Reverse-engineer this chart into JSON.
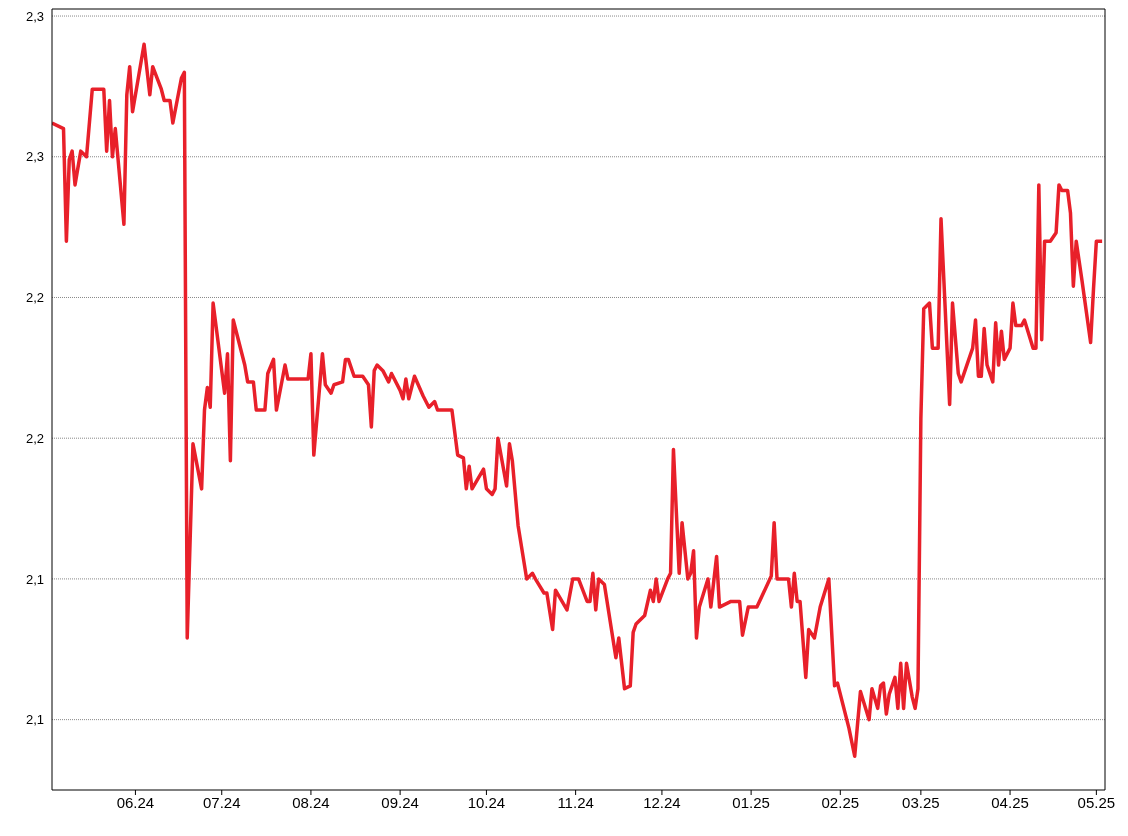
{
  "chart_data": {
    "type": "line",
    "grid": "y",
    "legend": false,
    "marker": "none",
    "line_style": "solid",
    "xlim": [
      "2024-05-03",
      "2025-05-04"
    ],
    "xticks": [
      {
        "value": "2024-06-01",
        "label": "06.24"
      },
      {
        "value": "2024-07-01",
        "label": "07.24"
      },
      {
        "value": "2024-08-01",
        "label": "08.24"
      },
      {
        "value": "2024-09-01",
        "label": "09.24"
      },
      {
        "value": "2024-10-01",
        "label": "10.24"
      },
      {
        "value": "2024-11-01",
        "label": "11.24"
      },
      {
        "value": "2024-12-01",
        "label": "12.24"
      },
      {
        "value": "2025-01-01",
        "label": "01.25"
      },
      {
        "value": "2025-02-01",
        "label": "02.25"
      },
      {
        "value": "2025-03-01",
        "label": "03.25"
      },
      {
        "value": "2025-04-01",
        "label": "04.25"
      },
      {
        "value": "2025-05-01",
        "label": "05.25"
      }
    ],
    "ylim": [
      2.075,
      2.3525
    ],
    "yticks": [
      {
        "value": 2.1,
        "label": "2,1"
      },
      {
        "value": 2.15,
        "label": "2,1"
      },
      {
        "value": 2.2,
        "label": "2,2"
      },
      {
        "value": 2.25,
        "label": "2,2"
      },
      {
        "value": 2.3,
        "label": "2,3"
      },
      {
        "value": 2.35,
        "label": "2,3"
      }
    ],
    "x": [
      "2024-05-03",
      "2024-05-07",
      "2024-05-08",
      "2024-05-09",
      "2024-05-10",
      "2024-05-11",
      "2024-05-13",
      "2024-05-15",
      "2024-05-17",
      "2024-05-21",
      "2024-05-22",
      "2024-05-23",
      "2024-05-24",
      "2024-05-25",
      "2024-05-28",
      "2024-05-29",
      "2024-05-30",
      "2024-05-31",
      "2024-06-04",
      "2024-06-06",
      "2024-06-07",
      "2024-06-10",
      "2024-06-11",
      "2024-06-13",
      "2024-06-14",
      "2024-06-17",
      "2024-06-18",
      "2024-06-19",
      "2024-06-21",
      "2024-06-24",
      "2024-06-25",
      "2024-06-26",
      "2024-06-27",
      "2024-06-28",
      "2024-07-02",
      "2024-07-03",
      "2024-07-04",
      "2024-07-05",
      "2024-07-09",
      "2024-07-10",
      "2024-07-12",
      "2024-07-13",
      "2024-07-16",
      "2024-07-17",
      "2024-07-19",
      "2024-07-20",
      "2024-07-23",
      "2024-07-24",
      "2024-07-31",
      "2024-08-01",
      "2024-08-02",
      "2024-08-05",
      "2024-08-06",
      "2024-08-08",
      "2024-08-09",
      "2024-08-12",
      "2024-08-13",
      "2024-08-14",
      "2024-08-16",
      "2024-08-19",
      "2024-08-21",
      "2024-08-22",
      "2024-08-23",
      "2024-08-24",
      "2024-08-26",
      "2024-08-28",
      "2024-08-29",
      "2024-09-01",
      "2024-09-02",
      "2024-09-03",
      "2024-09-04",
      "2024-09-06",
      "2024-09-09",
      "2024-09-11",
      "2024-09-13",
      "2024-09-14",
      "2024-09-19",
      "2024-09-21",
      "2024-09-23",
      "2024-09-24",
      "2024-09-25",
      "2024-09-26",
      "2024-09-30",
      "2024-10-01",
      "2024-10-03",
      "2024-10-04",
      "2024-10-05",
      "2024-10-08",
      "2024-10-09",
      "2024-10-10",
      "2024-10-12",
      "2024-10-15",
      "2024-10-17",
      "2024-10-18",
      "2024-10-21",
      "2024-10-22",
      "2024-10-24",
      "2024-10-25",
      "2024-10-29",
      "2024-10-31",
      "2024-11-02",
      "2024-11-05",
      "2024-11-06",
      "2024-11-07",
      "2024-11-08",
      "2024-11-09",
      "2024-11-11",
      "2024-11-15",
      "2024-11-16",
      "2024-11-18",
      "2024-11-20",
      "2024-11-21",
      "2024-11-22",
      "2024-11-25",
      "2024-11-27",
      "2024-11-28",
      "2024-11-29",
      "2024-11-30",
      "2024-12-03",
      "2024-12-04",
      "2024-12-05",
      "2024-12-07",
      "2024-12-08",
      "2024-12-10",
      "2024-12-11",
      "2024-12-12",
      "2024-12-13",
      "2024-12-14",
      "2024-12-17",
      "2024-12-18",
      "2024-12-20",
      "2024-12-21",
      "2024-12-25",
      "2024-12-28",
      "2024-12-29",
      "2024-12-31",
      "2025-01-03",
      "2025-01-08",
      "2025-01-09",
      "2025-01-10",
      "2025-01-14",
      "2025-01-15",
      "2025-01-16",
      "2025-01-17",
      "2025-01-18",
      "2025-01-20",
      "2025-01-21",
      "2025-01-23",
      "2025-01-25",
      "2025-01-28",
      "2025-01-30",
      "2025-01-31",
      "2025-02-04",
      "2025-02-06",
      "2025-02-08",
      "2025-02-11",
      "2025-02-12",
      "2025-02-14",
      "2025-02-15",
      "2025-02-16",
      "2025-02-17",
      "2025-02-18",
      "2025-02-20",
      "2025-02-21",
      "2025-02-22",
      "2025-02-23",
      "2025-02-24",
      "2025-02-26",
      "2025-02-27",
      "2025-02-28",
      "2025-03-01",
      "2025-03-02",
      "2025-03-04",
      "2025-03-05",
      "2025-03-07",
      "2025-03-08",
      "2025-03-11",
      "2025-03-12",
      "2025-03-14",
      "2025-03-15",
      "2025-03-19",
      "2025-03-20",
      "2025-03-21",
      "2025-03-22",
      "2025-03-23",
      "2025-03-24",
      "2025-03-26",
      "2025-03-27",
      "2025-03-28",
      "2025-03-29",
      "2025-03-30",
      "2025-04-01",
      "2025-04-02",
      "2025-04-03",
      "2025-04-05",
      "2025-04-06",
      "2025-04-09",
      "2025-04-10",
      "2025-04-11",
      "2025-04-12",
      "2025-04-13",
      "2025-04-15",
      "2025-04-17",
      "2025-04-18",
      "2025-04-19",
      "2025-04-21",
      "2025-04-22",
      "2025-04-23",
      "2025-04-24",
      "2025-04-26",
      "2025-04-29",
      "2025-04-30",
      "2025-05-01",
      "2025-05-03"
    ],
    "series": [
      {
        "color": "#e8202a",
        "values": [
          2.312,
          2.31,
          2.27,
          2.299,
          2.302,
          2.29,
          2.302,
          2.3,
          2.324,
          2.324,
          2.302,
          2.32,
          2.3,
          2.31,
          2.276,
          2.322,
          2.332,
          2.316,
          2.34,
          2.322,
          2.332,
          2.324,
          2.32,
          2.32,
          2.312,
          2.328,
          2.33,
          2.129,
          2.198,
          2.182,
          2.21,
          2.218,
          2.211,
          2.248,
          2.216,
          2.23,
          2.192,
          2.242,
          2.226,
          2.22,
          2.22,
          2.21,
          2.21,
          2.223,
          2.228,
          2.21,
          2.226,
          2.221,
          2.221,
          2.23,
          2.194,
          2.23,
          2.219,
          2.216,
          2.219,
          2.22,
          2.228,
          2.228,
          2.222,
          2.222,
          2.219,
          2.204,
          2.224,
          2.226,
          2.224,
          2.22,
          2.223,
          2.217,
          2.214,
          2.221,
          2.214,
          2.222,
          2.215,
          2.211,
          2.213,
          2.21,
          2.21,
          2.194,
          2.193,
          2.182,
          2.19,
          2.182,
          2.189,
          2.182,
          2.18,
          2.182,
          2.2,
          2.183,
          2.198,
          2.192,
          2.169,
          2.15,
          2.152,
          2.15,
          2.145,
          2.145,
          2.132,
          2.146,
          2.139,
          2.15,
          2.15,
          2.142,
          2.142,
          2.152,
          2.139,
          2.15,
          2.148,
          2.122,
          2.129,
          2.111,
          2.112,
          2.131,
          2.134,
          2.137,
          2.146,
          2.142,
          2.15,
          2.142,
          2.15,
          2.152,
          2.196,
          2.152,
          2.17,
          2.15,
          2.152,
          2.16,
          2.129,
          2.14,
          2.15,
          2.14,
          2.158,
          2.14,
          2.142,
          2.142,
          2.13,
          2.14,
          2.14,
          2.151,
          2.17,
          2.15,
          2.15,
          2.14,
          2.152,
          2.142,
          2.142,
          2.115,
          2.132,
          2.129,
          2.14,
          2.15,
          2.112,
          2.113,
          2.097,
          2.087,
          2.11,
          2.1,
          2.111,
          2.104,
          2.112,
          2.113,
          2.102,
          2.109,
          2.115,
          2.104,
          2.12,
          2.104,
          2.12,
          2.108,
          2.104,
          2.111,
          2.207,
          2.246,
          2.248,
          2.232,
          2.232,
          2.278,
          2.212,
          2.248,
          2.223,
          2.22,
          2.232,
          2.242,
          2.222,
          2.222,
          2.239,
          2.226,
          2.22,
          2.241,
          2.226,
          2.238,
          2.228,
          2.232,
          2.248,
          2.24,
          2.24,
          2.242,
          2.232,
          2.232,
          2.29,
          2.235,
          2.27,
          2.27,
          2.273,
          2.29,
          2.288,
          2.288,
          2.28,
          2.254,
          2.27,
          2.256,
          2.234,
          2.253,
          2.27,
          2.27
        ]
      }
    ]
  }
}
